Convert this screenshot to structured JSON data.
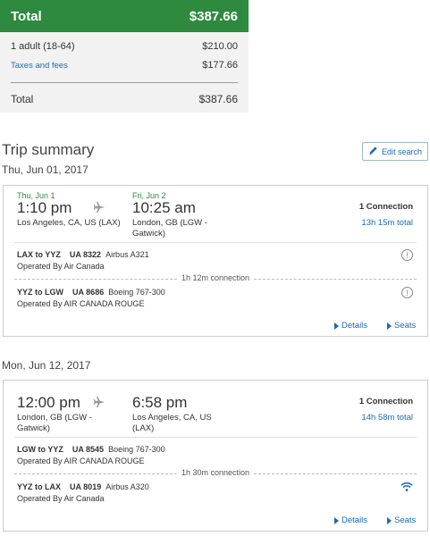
{
  "price": {
    "header_label": "Total",
    "header_value": "$387.66",
    "rows": [
      {
        "label": "1 adult (18-64)",
        "value": "$210.00"
      },
      {
        "label": "Taxes and fees",
        "value": "$177.66"
      }
    ],
    "total_label": "Total",
    "total_value": "$387.66"
  },
  "trip": {
    "title": "Trip summary",
    "edit_label": "Edit search"
  },
  "outbound": {
    "date": "Thu, Jun 01, 2017",
    "depart_day": "Thu, Jun 1",
    "depart_time": "1:10 pm",
    "depart_city": "Los Angeles, CA, US (LAX)",
    "arrive_day": "Fri, Jun 2",
    "arrive_time": "10:25 am",
    "arrive_city_1": "London, GB (LGW -",
    "arrive_city_2": "Gatwick)",
    "connections": "1 Connection",
    "duration": "13h 15m total",
    "seg1_route": "LAX to YYZ",
    "seg1_flight": "UA 8322",
    "seg1_aircraft": "Airbus A321",
    "seg1_operator": "Operated By Air Canada",
    "layover": "1h 12m connection",
    "seg2_route": "YYZ to LGW",
    "seg2_flight": "UA 8686",
    "seg2_aircraft": "Boeing 767-300",
    "seg2_operator": "Operated By AIR CANADA ROUGE",
    "details": "Details",
    "seats": "Seats"
  },
  "return": {
    "date": "Mon, Jun 12, 2017",
    "depart_time": "12:00 pm",
    "depart_city_1": "London, GB (LGW -",
    "depart_city_2": "Gatwick)",
    "arrive_time": "6:58 pm",
    "arrive_city_1": "Los Angeles, CA, US",
    "arrive_city_2": "(LAX)",
    "connections": "1 Connection",
    "duration": "14h 58m total",
    "seg1_route": "LGW to YYZ",
    "seg1_flight": "UA 8545",
    "seg1_aircraft": "Boeing 767-300",
    "seg1_operator": "Operated By AIR CANADA ROUGE",
    "layover": "1h 30m connection",
    "seg2_route": "YYZ to LAX",
    "seg2_flight": "UA 8019",
    "seg2_aircraft": "Airbus A320",
    "seg2_operator": "Operated By Air Canada",
    "details": "Details",
    "seats": "Seats"
  },
  "icons": {
    "edit": "pencil-icon",
    "plane": "airplane-icon",
    "info": "info-icon",
    "wifi": "wifi-icon",
    "chevron": "chevron-right-icon"
  },
  "colors": {
    "brand_green": "#2d8a3e",
    "link_blue": "#1a6bb5"
  }
}
